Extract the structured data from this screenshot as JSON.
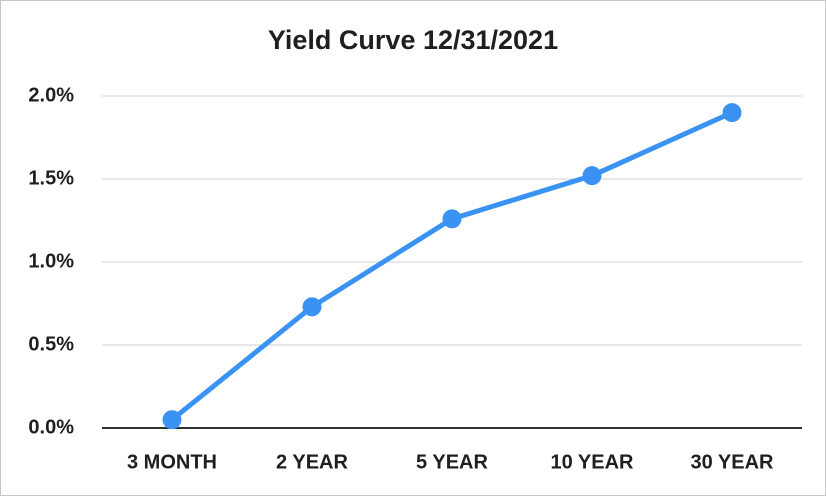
{
  "chart_data": {
    "type": "line",
    "title": "Yield Curve 12/31/2021",
    "categories": [
      "3 MONTH",
      "2 YEAR",
      "5 YEAR",
      "10 YEAR",
      "30 YEAR"
    ],
    "values": [
      0.05,
      0.73,
      1.26,
      1.52,
      1.9
    ],
    "color": "#3a93f2",
    "ylim": [
      0,
      2.0
    ],
    "yticks": [
      {
        "value": 0,
        "label": "0.0%"
      },
      {
        "value": 0.5,
        "label": "0.5%"
      },
      {
        "value": 1.0,
        "label": "1.0%"
      },
      {
        "value": 1.5,
        "label": "1.5%"
      },
      {
        "value": 2.0,
        "label": "2.0%"
      }
    ],
    "grid": true
  }
}
